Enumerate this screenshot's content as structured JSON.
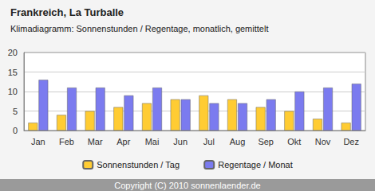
{
  "chart_data": {
    "type": "bar",
    "title": "Frankreich, La Turballe",
    "subtitle": "Klimadiagramm: Sonnenstunden / Regentage, monatlich, gemittelt",
    "categories": [
      "Jan",
      "Feb",
      "Mar",
      "Apr",
      "Mai",
      "Jun",
      "Jul",
      "Aug",
      "Sep",
      "Okt",
      "Nov",
      "Dez"
    ],
    "series": [
      {
        "name": "Sonnenstunden / Tag",
        "color": "#ffcc33",
        "values": [
          2,
          4,
          5,
          6,
          7,
          8,
          9,
          8,
          6,
          5,
          3,
          2
        ]
      },
      {
        "name": "Regentage / Monat",
        "color": "#7b7bef",
        "values": [
          13,
          11,
          11,
          9,
          11,
          8,
          7,
          7,
          8,
          10,
          11,
          12
        ]
      }
    ],
    "ylim": [
      0,
      20
    ],
    "yticks": [
      0,
      5,
      10,
      15,
      20
    ],
    "grid": true,
    "legend": "bottom",
    "annotations": [
      "Copyright (C) 2010 sonnenlaender.de"
    ]
  }
}
